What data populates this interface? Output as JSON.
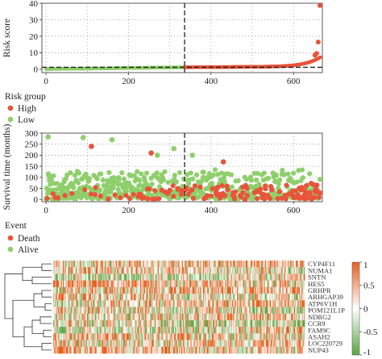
{
  "colors": {
    "high": "#e8543a",
    "low": "#8fcf6b",
    "death": "#e8543a",
    "alive": "#8fcf6b",
    "heat_high": "#e8601e",
    "heat_mid": "#ffffff",
    "heat_low": "#5aa541"
  },
  "chart_data": [
    {
      "type": "scatter",
      "name": "risk-score",
      "ylabel": "Risk score",
      "xlim": [
        -10,
        670
      ],
      "ylim": [
        -2,
        40
      ],
      "x_ticks": [
        "0",
        "200",
        "400",
        "600"
      ],
      "y_ticks": [
        "0",
        "10",
        "20",
        "30",
        "40"
      ],
      "cutoff_index": 336,
      "cutoff_score": 1.2,
      "n_samples": 666,
      "tail_points": [
        {
          "x": 652,
          "y": 8.5
        },
        {
          "x": 656,
          "y": 9.6
        },
        {
          "x": 660,
          "y": 16.5
        },
        {
          "x": 664,
          "y": 38.6
        }
      ],
      "legend_title": "Risk group",
      "legend": [
        "High",
        "Low"
      ]
    },
    {
      "type": "scatter",
      "name": "survival-time",
      "ylabel": "Survival time (months)",
      "xlim": [
        -10,
        670
      ],
      "ylim": [
        -10,
        300
      ],
      "x_ticks": [
        "0",
        "200",
        "400",
        "600"
      ],
      "y_ticks": [
        "0",
        "50",
        "100",
        "150",
        "200",
        "250",
        "300"
      ],
      "cutoff_index": 336,
      "notable_points": [
        {
          "x": 5,
          "y": 283,
          "event": "Alive"
        },
        {
          "x": 90,
          "y": 280,
          "event": "Alive"
        },
        {
          "x": 110,
          "y": 240,
          "event": "Death"
        },
        {
          "x": 160,
          "y": 270,
          "event": "Alive"
        },
        {
          "x": 255,
          "y": 210,
          "event": "Death"
        },
        {
          "x": 270,
          "y": 200,
          "event": "Alive"
        },
        {
          "x": 310,
          "y": 230,
          "event": "Alive"
        },
        {
          "x": 355,
          "y": 200,
          "event": "Alive"
        },
        {
          "x": 430,
          "y": 170,
          "event": "Death"
        }
      ],
      "legend_title": "Event",
      "legend": [
        "Death",
        "Alive"
      ]
    },
    {
      "type": "heatmap",
      "name": "gene-expression",
      "genes": [
        "CYP4F11",
        "NUMA1",
        "SNTN",
        "HES5",
        "GRHPR",
        "ARHGAP39",
        "ATP6V1H",
        "POM121L1P",
        "NDRG2",
        "CCR9",
        "FAM9C",
        "ASAH2",
        "LOC220729",
        "NUP43"
      ],
      "n_columns": 666,
      "value_range": [
        -1,
        1
      ],
      "colorbar_ticks": [
        "1",
        "0.5",
        "0",
        "-0.5",
        "-1"
      ]
    }
  ]
}
